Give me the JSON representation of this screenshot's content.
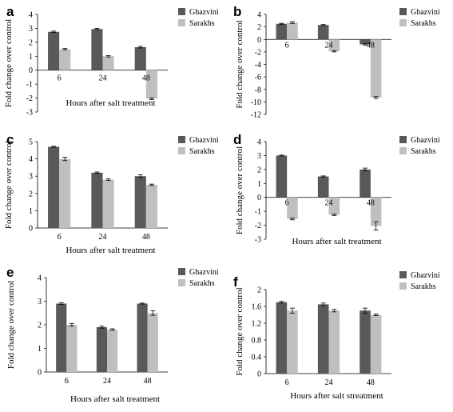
{
  "figure": {
    "panels": [
      "a",
      "b",
      "c",
      "d",
      "e",
      "f"
    ]
  },
  "colors": {
    "ghazvini": "#595959",
    "sarakhs": "#bfbfbf",
    "axis": "#000000",
    "error": "#000000"
  },
  "chart_data": [
    {
      "panel": "a",
      "type": "bar",
      "categories": [
        "6",
        "24",
        "48"
      ],
      "series": [
        {
          "name": "Ghazvini",
          "values": [
            2.75,
            2.95,
            1.65
          ],
          "errors": [
            0.05,
            0.05,
            0.06
          ]
        },
        {
          "name": "Sarakhs",
          "values": [
            1.5,
            1.0,
            -2.05
          ],
          "errors": [
            0.06,
            0.05,
            0.06
          ]
        }
      ],
      "ylim": [
        -3,
        4
      ],
      "yticks": [
        -3,
        -2,
        -1,
        0,
        1,
        2,
        3,
        4
      ],
      "ylabel": "Fold change over control",
      "xlabel": "Hours after salt treatment",
      "legend": "top-right",
      "grid": false
    },
    {
      "panel": "b",
      "type": "bar",
      "categories": [
        "6",
        "24",
        "48"
      ],
      "series": [
        {
          "name": "Ghazvini",
          "values": [
            2.5,
            2.3,
            -0.8
          ],
          "errors": [
            0.08,
            0.08,
            0.1
          ]
        },
        {
          "name": "Sarakhs",
          "values": [
            2.7,
            -1.9,
            -9.3
          ],
          "errors": [
            0.15,
            0.1,
            0.15
          ]
        }
      ],
      "ylim": [
        -12,
        4
      ],
      "yticks": [
        -12,
        -10,
        -8,
        -6,
        -4,
        -2,
        0,
        2,
        4
      ],
      "ylabel": "Fold change over control",
      "xlabel": "",
      "legend": "top-right",
      "grid": false
    },
    {
      "panel": "c",
      "type": "bar",
      "categories": [
        "6",
        "24",
        "48"
      ],
      "series": [
        {
          "name": "Ghazvini",
          "values": [
            4.7,
            3.2,
            3.0
          ],
          "errors": [
            0.03,
            0.04,
            0.08
          ]
        },
        {
          "name": "Sarakhs",
          "values": [
            4.0,
            2.8,
            2.5
          ],
          "errors": [
            0.1,
            0.05,
            0.04
          ]
        }
      ],
      "ylim": [
        0,
        5
      ],
      "yticks": [
        0,
        1,
        2,
        3,
        4,
        5
      ],
      "ylabel": "Fold change over control",
      "xlabel": "Hours after salt treatment",
      "legend": "top-right",
      "grid": false
    },
    {
      "panel": "d",
      "type": "bar",
      "categories": [
        "6",
        "24",
        "48"
      ],
      "series": [
        {
          "name": "Ghazvini",
          "values": [
            3.0,
            1.5,
            2.0
          ],
          "errors": [
            0.03,
            0.04,
            0.1
          ]
        },
        {
          "name": "Sarakhs",
          "values": [
            -1.55,
            -1.25,
            -2.05
          ],
          "errors": [
            0.06,
            0.05,
            0.3
          ]
        }
      ],
      "ylim": [
        -3,
        4
      ],
      "yticks": [
        -3,
        -2,
        -1,
        0,
        1,
        2,
        3,
        4
      ],
      "ylabel": "Fold change over control",
      "xlabel": "Hours after salt treatment",
      "legend": "top-right",
      "grid": false
    },
    {
      "panel": "e",
      "type": "bar",
      "categories": [
        "6",
        "24",
        "48"
      ],
      "series": [
        {
          "name": "Ghazvini",
          "values": [
            2.9,
            1.9,
            2.9
          ],
          "errors": [
            0.04,
            0.04,
            0.02
          ]
        },
        {
          "name": "Sarakhs",
          "values": [
            2.0,
            1.8,
            2.5
          ],
          "errors": [
            0.06,
            0.03,
            0.1
          ]
        }
      ],
      "ylim": [
        0,
        4
      ],
      "yticks": [
        0,
        1,
        2,
        3,
        4
      ],
      "ylabel": "Fold change over control",
      "xlabel": "Hours after salt treatment",
      "legend": "top-right",
      "grid": false
    },
    {
      "panel": "f",
      "type": "bar",
      "categories": [
        "6",
        "24",
        "48"
      ],
      "series": [
        {
          "name": "Ghazvini",
          "values": [
            1.7,
            1.65,
            1.5
          ],
          "errors": [
            0.02,
            0.03,
            0.06
          ]
        },
        {
          "name": "Sarakhs",
          "values": [
            1.5,
            1.5,
            1.4
          ],
          "errors": [
            0.06,
            0.03,
            0.02
          ]
        }
      ],
      "ylim": [
        0,
        2
      ],
      "yticks": [
        0,
        0.4,
        0.8,
        1.2,
        1.6,
        2
      ],
      "ylabel": "Fold change over control",
      "xlabel": "Hours after salt streatment",
      "legend": "top-right",
      "grid": false
    }
  ]
}
